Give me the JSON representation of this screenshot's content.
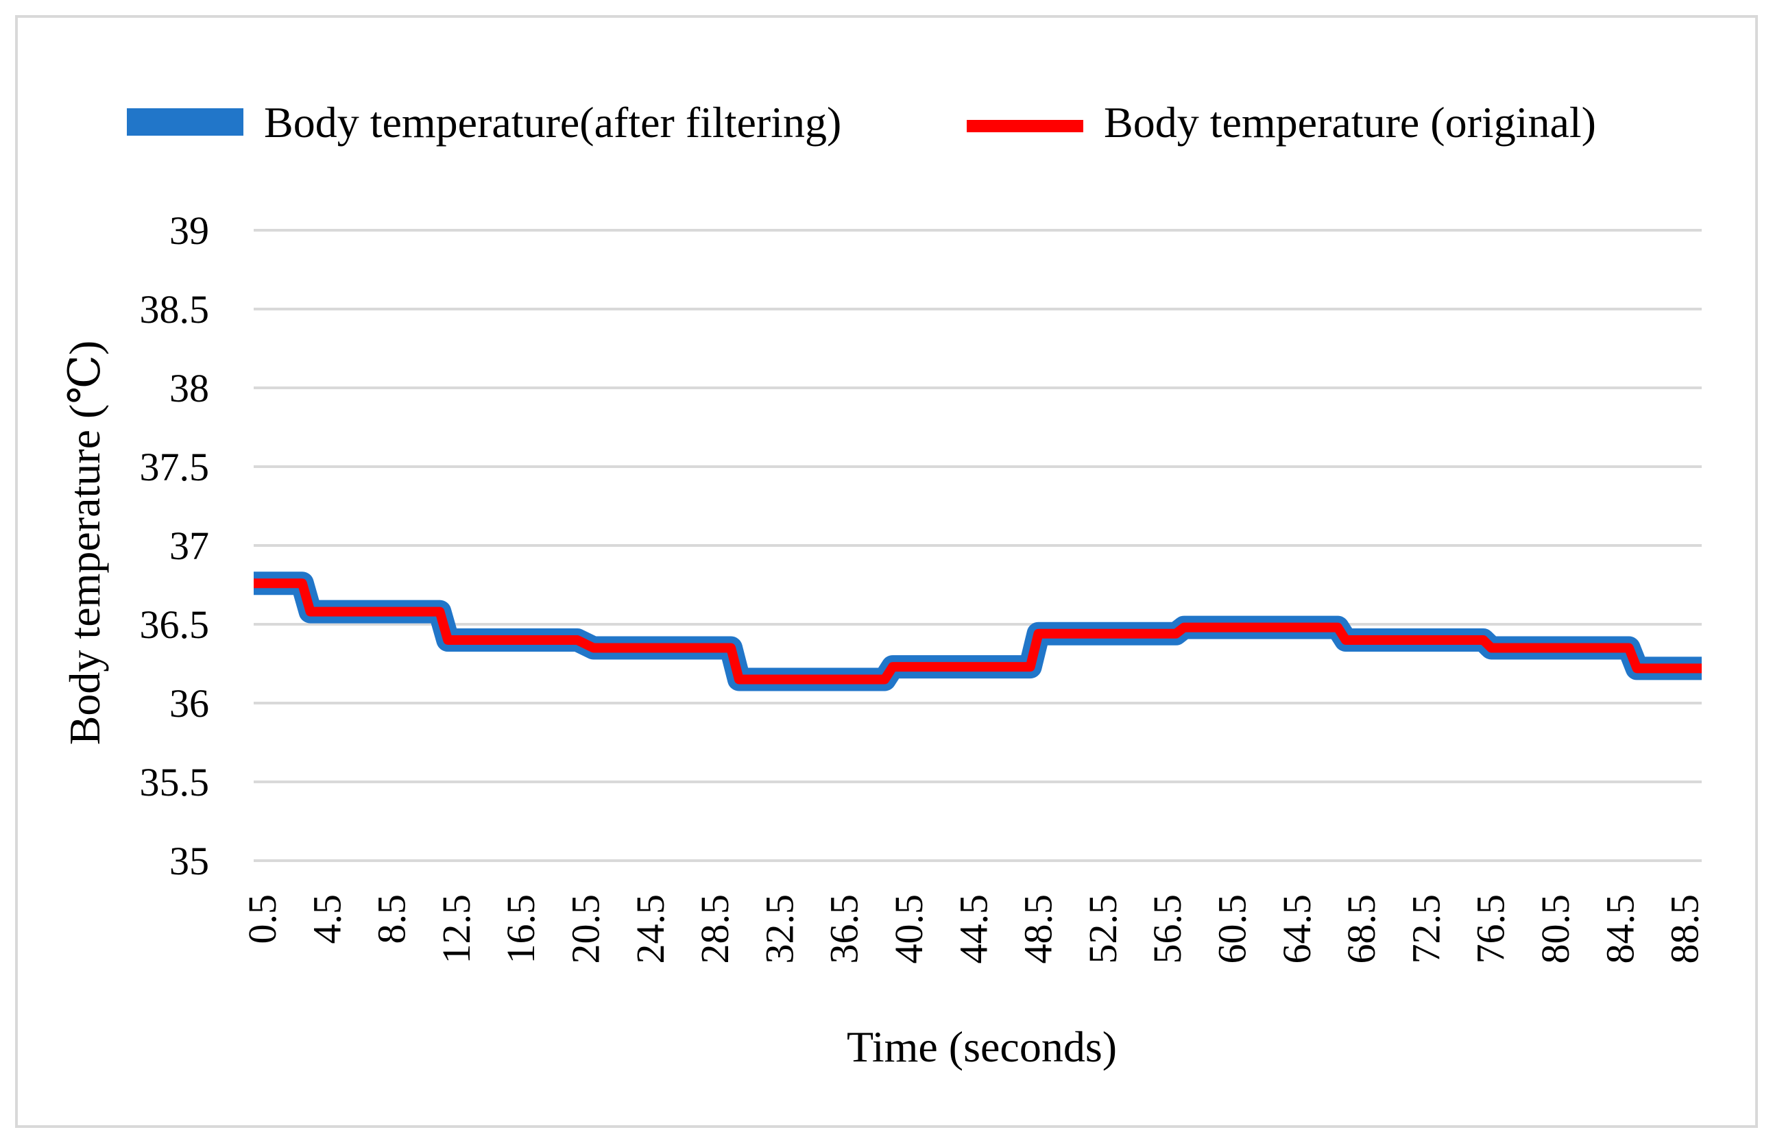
{
  "chart_data": {
    "type": "line",
    "title": "",
    "xlabel": "Time (seconds)",
    "ylabel": "Body temperature (℃)",
    "ylim": [
      35,
      39
    ],
    "yticks": [
      "35",
      "35.5",
      "36",
      "36.5",
      "37",
      "37.5",
      "38",
      "38.5",
      "39"
    ],
    "xlim": [
      0.5,
      90
    ],
    "xticks": [
      "0.5",
      "4.5",
      "8.5",
      "12.5",
      "16.5",
      "20.5",
      "24.5",
      "28.5",
      "32.5",
      "36.5",
      "40.5",
      "44.5",
      "48.5",
      "52.5",
      "56.5",
      "60.5",
      "64.5",
      "68.5",
      "72.5",
      "76.5",
      "80.5",
      "84.5",
      "88.5"
    ],
    "grid": true,
    "legend_position": "top",
    "series": [
      {
        "name": "Body temperature(after filtering)",
        "color": "#2176c9",
        "style": "step",
        "points": [
          [
            0.5,
            36.76
          ],
          [
            3.5,
            36.76
          ],
          [
            4,
            36.58
          ],
          [
            12,
            36.58
          ],
          [
            12.5,
            36.4
          ],
          [
            20.5,
            36.4
          ],
          [
            21.5,
            36.35
          ],
          [
            30,
            36.35
          ],
          [
            30.5,
            36.15
          ],
          [
            39.5,
            36.15
          ],
          [
            40,
            36.23
          ],
          [
            48.5,
            36.23
          ],
          [
            49,
            36.44
          ],
          [
            57.5,
            36.44
          ],
          [
            58,
            36.48
          ],
          [
            67.5,
            36.48
          ],
          [
            68,
            36.4
          ],
          [
            76.5,
            36.4
          ],
          [
            77,
            36.35
          ],
          [
            85.5,
            36.35
          ],
          [
            86,
            36.22
          ],
          [
            90,
            36.22
          ]
        ]
      },
      {
        "name": "Body temperature  (original)",
        "color": "#ff0000",
        "style": "step",
        "points": [
          [
            0.5,
            36.76
          ],
          [
            3.5,
            36.76
          ],
          [
            4,
            36.58
          ],
          [
            12,
            36.58
          ],
          [
            12.5,
            36.4
          ],
          [
            20.5,
            36.4
          ],
          [
            21.5,
            36.35
          ],
          [
            30,
            36.35
          ],
          [
            30.5,
            36.15
          ],
          [
            39.5,
            36.15
          ],
          [
            40,
            36.23
          ],
          [
            48.5,
            36.23
          ],
          [
            49,
            36.44
          ],
          [
            57.5,
            36.44
          ],
          [
            58,
            36.48
          ],
          [
            67.5,
            36.48
          ],
          [
            68,
            36.4
          ],
          [
            76.5,
            36.4
          ],
          [
            77,
            36.35
          ],
          [
            85.5,
            36.35
          ],
          [
            86,
            36.22
          ],
          [
            90,
            36.22
          ]
        ]
      }
    ]
  }
}
